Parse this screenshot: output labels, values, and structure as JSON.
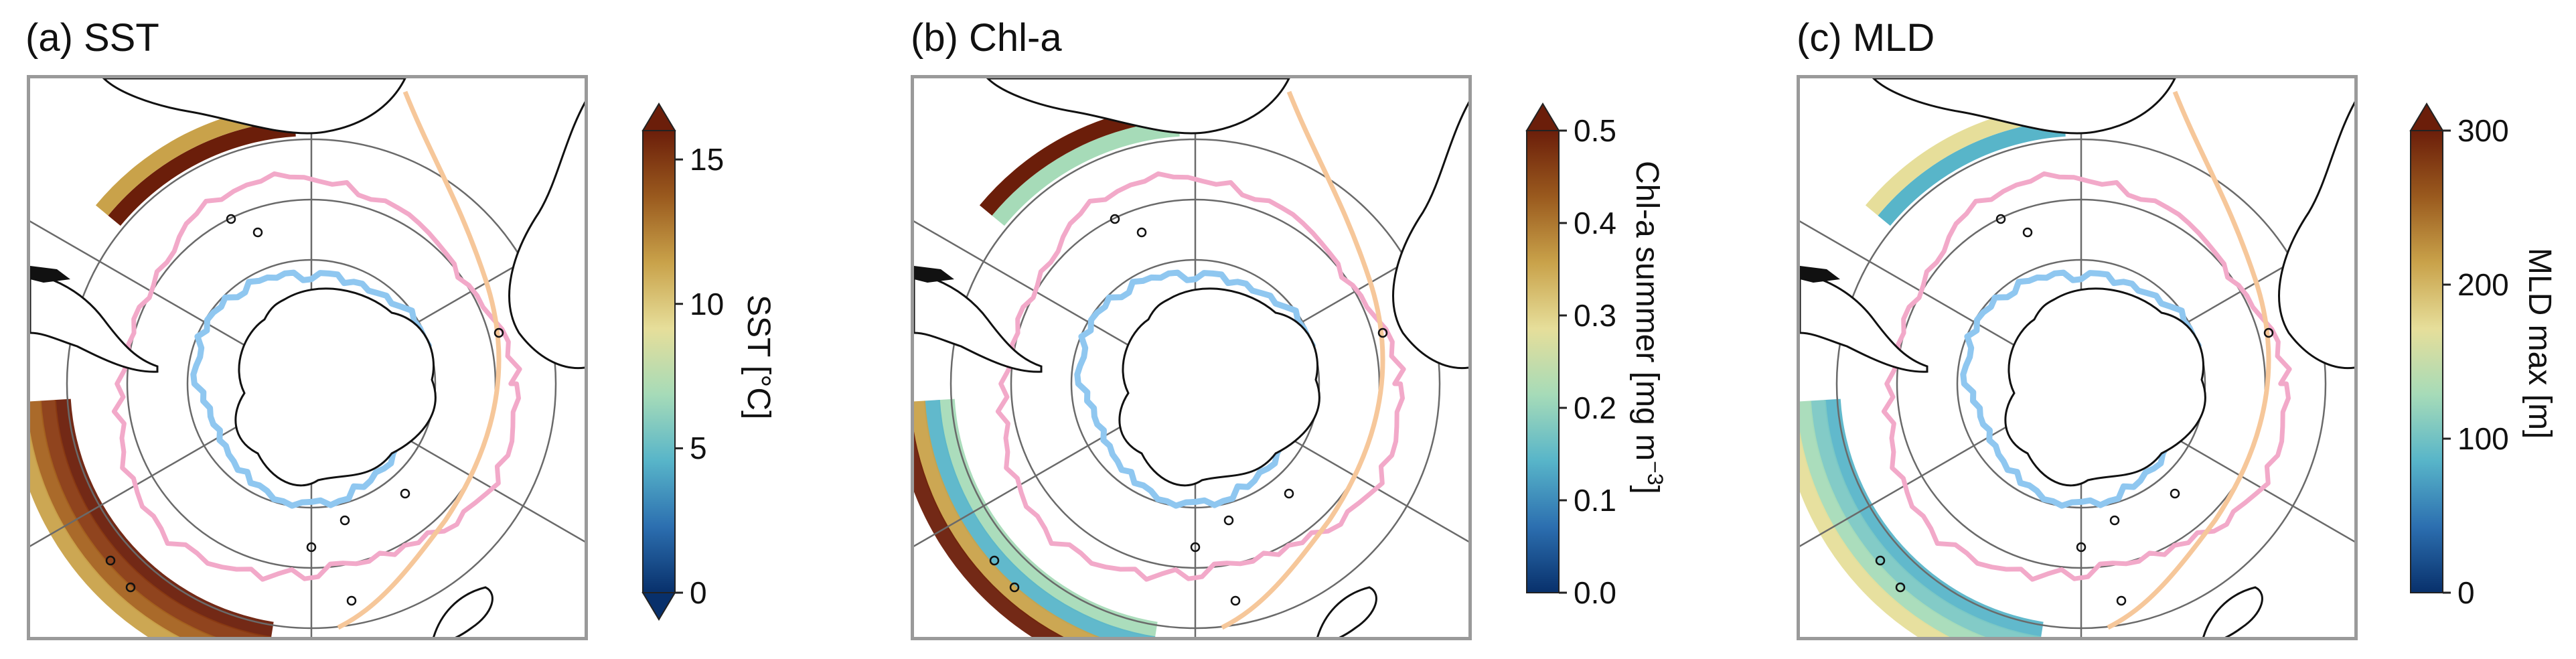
{
  "panels": [
    {
      "id": "sst",
      "title": "(a) SST",
      "colorbar": {
        "label": "SST [°C]",
        "ticks": [
          "0",
          "5",
          "10",
          "15"
        ],
        "min": 0,
        "max": 16,
        "extend": "both",
        "label_side": "right-rotated-cw"
      }
    },
    {
      "id": "chl",
      "title": "(b) Chl-a",
      "colorbar": {
        "label": "Chl-a summer [mg m−3]",
        "ticks": [
          "0.0",
          "0.1",
          "0.2",
          "0.3",
          "0.4",
          "0.5"
        ],
        "min": 0,
        "max": 0.5,
        "extend": "max",
        "label_side": "right-rotated-cw"
      }
    },
    {
      "id": "mld",
      "title": "(c) MLD",
      "colorbar": {
        "label": "MLD max [m]",
        "ticks": [
          "0",
          "100",
          "200",
          "300"
        ],
        "min": 0,
        "max": 300,
        "extend": "max",
        "label_side": "right-rotated-cw"
      }
    }
  ],
  "map": {
    "projection": "south-polar-stereographic",
    "fronts": [
      {
        "name": "blue-front",
        "color": "#8fc7f0"
      },
      {
        "name": "pink-front",
        "color": "#f2a9c9"
      },
      {
        "name": "orange-front",
        "color": "#f6c79a"
      }
    ],
    "colormap": [
      "#08306b",
      "#2c6fb0",
      "#58b5c9",
      "#a6dbb8",
      "#e6de9a",
      "#c9a24a",
      "#9a5a1e",
      "#6b1e0a"
    ]
  }
}
